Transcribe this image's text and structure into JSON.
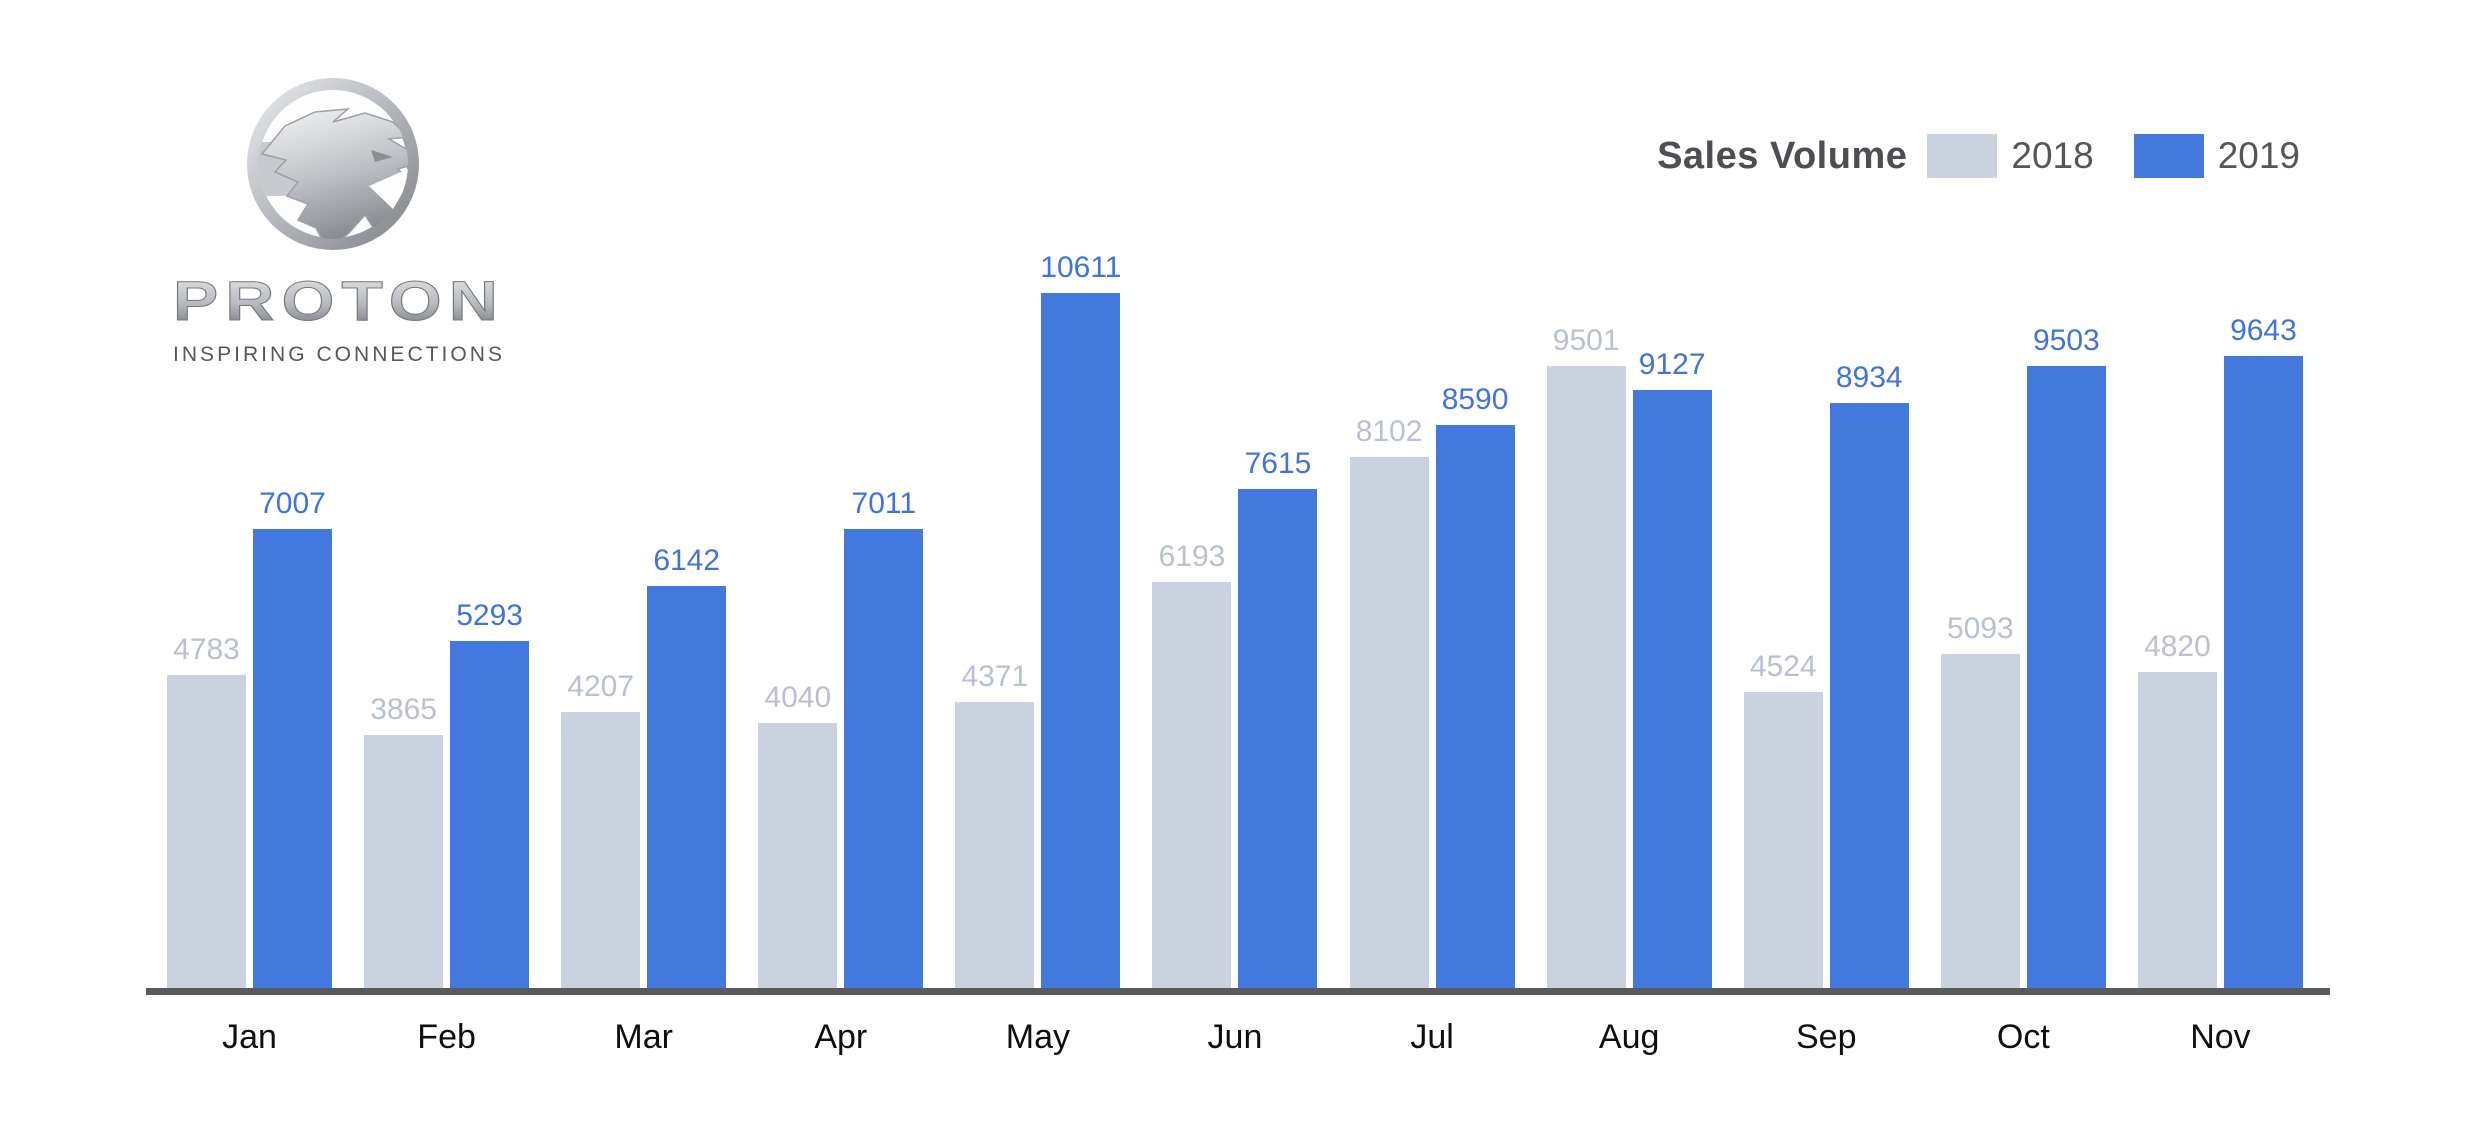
{
  "logo": {
    "brand": "PROTON",
    "tagline": "INSPIRING CONNECTIONS",
    "icon": "proton-tiger-badge"
  },
  "legend": {
    "title": "Sales Volume",
    "series": [
      {
        "label": "2018",
        "color": "#cbd2df"
      },
      {
        "label": "2019",
        "color": "#4379dc"
      }
    ]
  },
  "chart_data": {
    "type": "bar",
    "title": "Sales Volume",
    "categories": [
      "Jan",
      "Feb",
      "Mar",
      "Apr",
      "May",
      "Jun",
      "Jul",
      "Aug",
      "Sep",
      "Oct",
      "Nov"
    ],
    "series": [
      {
        "name": "2018",
        "color": "#cbd2df",
        "label_color": "#b7c0d4",
        "values": [
          4783,
          3865,
          4207,
          4040,
          4371,
          6193,
          8102,
          9501,
          4524,
          5093,
          4820
        ]
      },
      {
        "name": "2019",
        "color": "#4379dc",
        "label_color": "#4074d9",
        "values": [
          7007,
          5293,
          6142,
          7011,
          10611,
          7615,
          8590,
          9127,
          8934,
          9503,
          9643
        ]
      }
    ],
    "xlabel": "",
    "ylabel": "",
    "ylim": [
      0,
      10611
    ],
    "grid": false,
    "value_labels": true,
    "legend_position": "top-right",
    "axis_line_color": "#595a5e",
    "month_label_color": "#0e0f10"
  }
}
